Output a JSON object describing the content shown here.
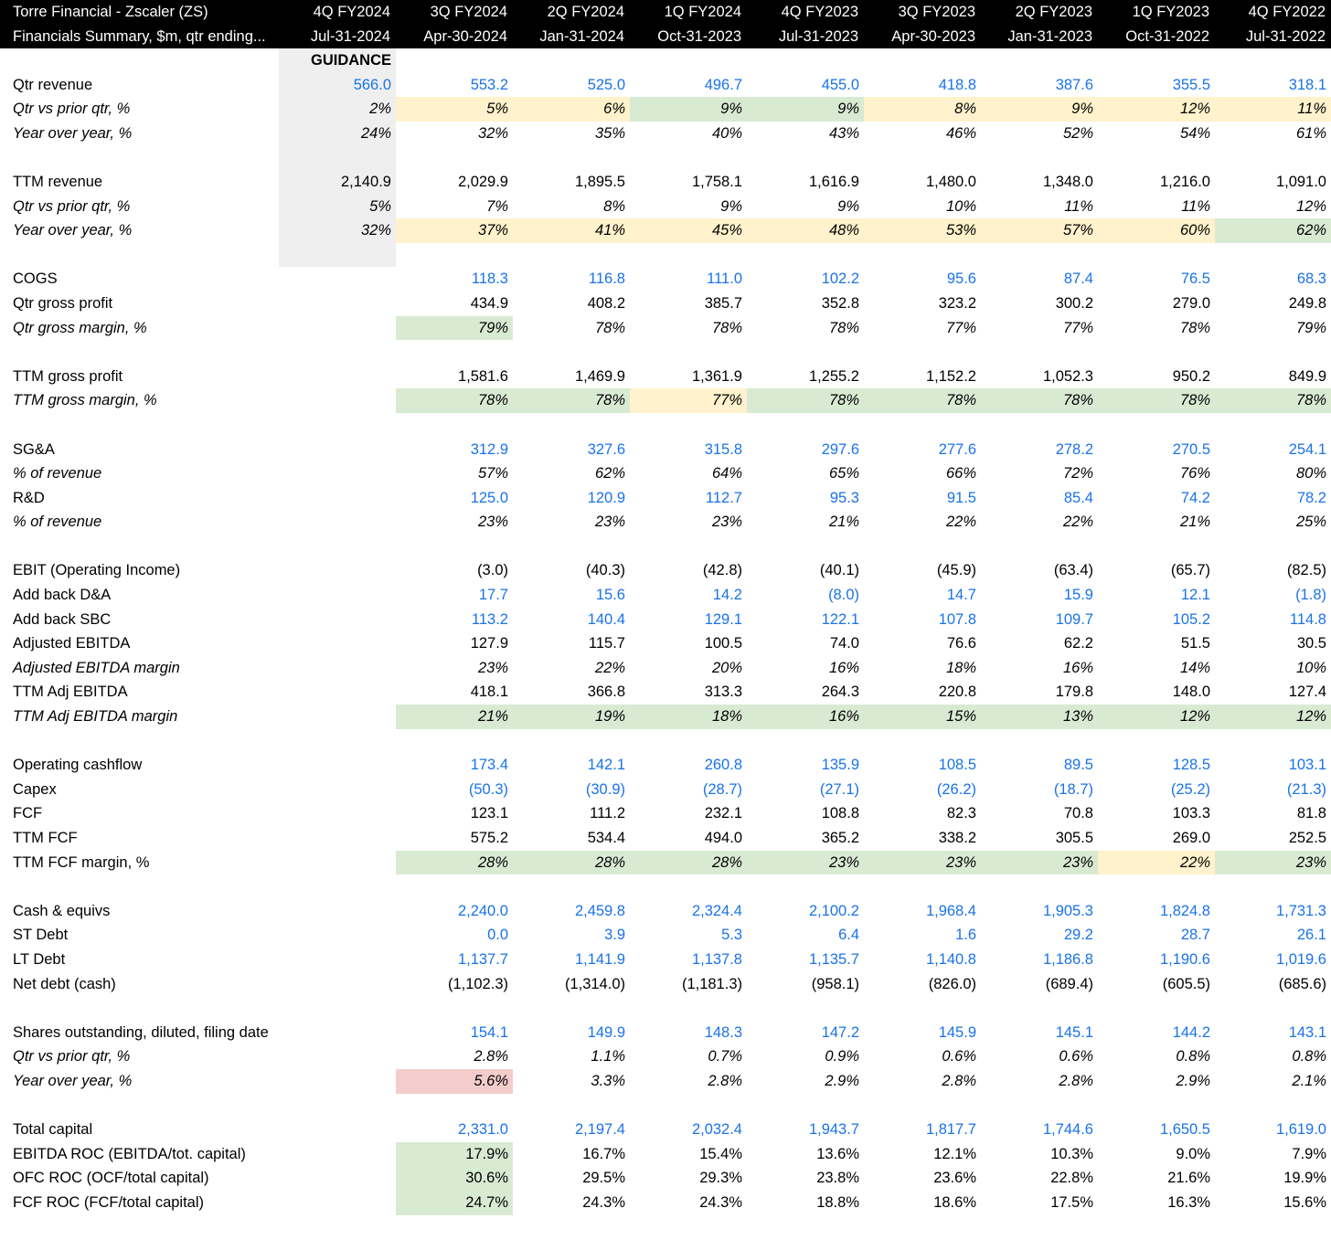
{
  "header": {
    "line1": [
      "Torre Financial - Zscaler (ZS)",
      "4Q FY2024",
      "3Q FY2024",
      "2Q FY2024",
      "1Q FY2024",
      "4Q FY2023",
      "3Q FY2023",
      "2Q FY2023",
      "1Q FY2023",
      "4Q FY2022"
    ],
    "line2": [
      "Financials Summary, $m, qtr ending...",
      "Jul-31-2024",
      "Apr-30-2024",
      "Jan-31-2024",
      "Oct-31-2023",
      "Jul-31-2023",
      "Apr-30-2023",
      "Jan-31-2023",
      "Oct-31-2022",
      "Jul-31-2022"
    ]
  },
  "guidance_label": "GUIDANCE",
  "colors": {
    "blue_input": "#1a73e8",
    "green": "#d9ead3",
    "yellow": "#fff2cc",
    "red": "#f4cccc",
    "guidance": "#efefef"
  },
  "rows": [
    {
      "label": "Qtr revenue",
      "blue": true,
      "values": [
        "566.0",
        "553.2",
        "525.0",
        "496.7",
        "455.0",
        "418.8",
        "387.6",
        "355.5",
        "318.1"
      ]
    },
    {
      "label": "Qtr vs prior qtr, %",
      "italic": true,
      "values": [
        "2%",
        "5%",
        "6%",
        "9%",
        "9%",
        "8%",
        "9%",
        "12%",
        "11%"
      ],
      "fills": [
        "",
        "y",
        "y",
        "g",
        "g",
        "y",
        "y",
        "y",
        "y"
      ]
    },
    {
      "label": "Year over year, %",
      "italic": true,
      "values": [
        "24%",
        "32%",
        "35%",
        "40%",
        "43%",
        "46%",
        "52%",
        "54%",
        "61%"
      ]
    },
    {
      "blank": true
    },
    {
      "label": "TTM revenue",
      "values": [
        "2,140.9",
        "2,029.9",
        "1,895.5",
        "1,758.1",
        "1,616.9",
        "1,480.0",
        "1,348.0",
        "1,216.0",
        "1,091.0"
      ]
    },
    {
      "label": "Qtr vs prior qtr, %",
      "italic": true,
      "values": [
        "5%",
        "7%",
        "8%",
        "9%",
        "9%",
        "10%",
        "11%",
        "11%",
        "12%"
      ]
    },
    {
      "label": "Year over year, %",
      "italic": true,
      "values": [
        "32%",
        "37%",
        "41%",
        "45%",
        "48%",
        "53%",
        "57%",
        "60%",
        "62%"
      ],
      "fills": [
        "",
        "y",
        "y",
        "y",
        "y",
        "y",
        "y",
        "y",
        "g"
      ]
    },
    {
      "blank": true
    },
    {
      "label": "COGS",
      "blue": true,
      "values": [
        "",
        "118.3",
        "116.8",
        "111.0",
        "102.2",
        "95.6",
        "87.4",
        "76.5",
        "68.3"
      ]
    },
    {
      "label": "Qtr gross profit",
      "values": [
        "",
        "434.9",
        "408.2",
        "385.7",
        "352.8",
        "323.2",
        "300.2",
        "279.0",
        "249.8"
      ]
    },
    {
      "label": "Qtr gross margin, %",
      "italic": true,
      "values": [
        "",
        "79%",
        "78%",
        "78%",
        "78%",
        "77%",
        "77%",
        "78%",
        "79%"
      ],
      "fills": [
        "",
        "g",
        "",
        "",
        "",
        "",
        "",
        "",
        ""
      ]
    },
    {
      "blank": true
    },
    {
      "label": "TTM gross profit",
      "values": [
        "",
        "1,581.6",
        "1,469.9",
        "1,361.9",
        "1,255.2",
        "1,152.2",
        "1,052.3",
        "950.2",
        "849.9"
      ]
    },
    {
      "label": "TTM gross margin, %",
      "italic": true,
      "values": [
        "",
        "78%",
        "78%",
        "77%",
        "78%",
        "78%",
        "78%",
        "78%",
        "78%"
      ],
      "fills": [
        "",
        "g",
        "g",
        "y",
        "g",
        "g",
        "g",
        "g",
        "g"
      ]
    },
    {
      "blank": true
    },
    {
      "label": "SG&A",
      "blue": true,
      "values": [
        "",
        "312.9",
        "327.6",
        "315.8",
        "297.6",
        "277.6",
        "278.2",
        "270.5",
        "254.1"
      ]
    },
    {
      "label": "% of revenue",
      "italic": true,
      "values": [
        "",
        "57%",
        "62%",
        "64%",
        "65%",
        "66%",
        "72%",
        "76%",
        "80%"
      ]
    },
    {
      "label": "R&D",
      "blue": true,
      "values": [
        "",
        "125.0",
        "120.9",
        "112.7",
        "95.3",
        "91.5",
        "85.4",
        "74.2",
        "78.2"
      ]
    },
    {
      "label": "% of revenue",
      "italic": true,
      "values": [
        "",
        "23%",
        "23%",
        "23%",
        "21%",
        "22%",
        "22%",
        "21%",
        "25%"
      ]
    },
    {
      "blank": true
    },
    {
      "label": "EBIT (Operating Income)",
      "values": [
        "",
        "(3.0)",
        "(40.3)",
        "(42.8)",
        "(40.1)",
        "(45.9)",
        "(63.4)",
        "(65.7)",
        "(82.5)"
      ]
    },
    {
      "label": "Add back D&A",
      "blue": true,
      "values": [
        "",
        "17.7",
        "15.6",
        "14.2",
        "(8.0)",
        "14.7",
        "15.9",
        "12.1",
        "(1.8)"
      ]
    },
    {
      "label": "Add back SBC",
      "blue": true,
      "values": [
        "",
        "113.2",
        "140.4",
        "129.1",
        "122.1",
        "107.8",
        "109.7",
        "105.2",
        "114.8"
      ]
    },
    {
      "label": "Adjusted EBITDA",
      "values": [
        "",
        "127.9",
        "115.7",
        "100.5",
        "74.0",
        "76.6",
        "62.2",
        "51.5",
        "30.5"
      ]
    },
    {
      "label": "Adjusted EBITDA margin",
      "italic": true,
      "values": [
        "",
        "23%",
        "22%",
        "20%",
        "16%",
        "18%",
        "16%",
        "14%",
        "10%"
      ]
    },
    {
      "label": "TTM Adj EBITDA",
      "values": [
        "",
        "418.1",
        "366.8",
        "313.3",
        "264.3",
        "220.8",
        "179.8",
        "148.0",
        "127.4"
      ]
    },
    {
      "label": "TTM Adj EBITDA margin",
      "italic": true,
      "values": [
        "",
        "21%",
        "19%",
        "18%",
        "16%",
        "15%",
        "13%",
        "12%",
        "12%"
      ],
      "fills": [
        "",
        "g",
        "g",
        "g",
        "g",
        "g",
        "g",
        "g",
        "g"
      ]
    },
    {
      "blank": true
    },
    {
      "label": "Operating cashflow",
      "blue": true,
      "values": [
        "",
        "173.4",
        "142.1",
        "260.8",
        "135.9",
        "108.5",
        "89.5",
        "128.5",
        "103.1"
      ]
    },
    {
      "label": "Capex",
      "blue": true,
      "values": [
        "",
        "(50.3)",
        "(30.9)",
        "(28.7)",
        "(27.1)",
        "(26.2)",
        "(18.7)",
        "(25.2)",
        "(21.3)"
      ]
    },
    {
      "label": "FCF",
      "values": [
        "",
        "123.1",
        "111.2",
        "232.1",
        "108.8",
        "82.3",
        "70.8",
        "103.3",
        "81.8"
      ]
    },
    {
      "label": "TTM FCF",
      "values": [
        "",
        "575.2",
        "534.4",
        "494.0",
        "365.2",
        "338.2",
        "305.5",
        "269.0",
        "252.5"
      ]
    },
    {
      "label": "TTM FCF margin, %",
      "italicValues": true,
      "values": [
        "",
        "28%",
        "28%",
        "28%",
        "23%",
        "23%",
        "23%",
        "22%",
        "23%"
      ],
      "fills": [
        "",
        "g",
        "g",
        "g",
        "g",
        "g",
        "g",
        "y",
        "g"
      ]
    },
    {
      "blank": true
    },
    {
      "label": "Cash & equivs",
      "blue": true,
      "values": [
        "",
        "2,240.0",
        "2,459.8",
        "2,324.4",
        "2,100.2",
        "1,968.4",
        "1,905.3",
        "1,824.8",
        "1,731.3"
      ]
    },
    {
      "label": "ST Debt",
      "blue": true,
      "values": [
        "",
        "0.0",
        "3.9",
        "5.3",
        "6.4",
        "1.6",
        "29.2",
        "28.7",
        "26.1"
      ]
    },
    {
      "label": "LT Debt",
      "blue": true,
      "values": [
        "",
        "1,137.7",
        "1,141.9",
        "1,137.8",
        "1,135.7",
        "1,140.8",
        "1,186.8",
        "1,190.6",
        "1,019.6"
      ]
    },
    {
      "label": "Net debt (cash)",
      "values": [
        "",
        "(1,102.3)",
        "(1,314.0)",
        "(1,181.3)",
        "(958.1)",
        "(826.0)",
        "(689.4)",
        "(605.5)",
        "(685.6)"
      ]
    },
    {
      "blank": true
    },
    {
      "label": "Shares outstanding, diluted, filing date",
      "blue": true,
      "values": [
        "",
        "154.1",
        "149.9",
        "148.3",
        "147.2",
        "145.9",
        "145.1",
        "144.2",
        "143.1"
      ]
    },
    {
      "label": "Qtr vs prior qtr, %",
      "italic": true,
      "values": [
        "",
        "2.8%",
        "1.1%",
        "0.7%",
        "0.9%",
        "0.6%",
        "0.6%",
        "0.8%",
        "0.8%"
      ]
    },
    {
      "label": "Year over year, %",
      "italic": true,
      "values": [
        "",
        "5.6%",
        "3.3%",
        "2.8%",
        "2.9%",
        "2.8%",
        "2.8%",
        "2.9%",
        "2.1%"
      ],
      "fills": [
        "",
        "r",
        "",
        "",
        "",
        "",
        "",
        "",
        ""
      ]
    },
    {
      "blank": true
    },
    {
      "label": "Total capital",
      "blue": true,
      "values": [
        "",
        "2,331.0",
        "2,197.4",
        "2,032.4",
        "1,943.7",
        "1,817.7",
        "1,744.6",
        "1,650.5",
        "1,619.0"
      ]
    },
    {
      "label": "EBITDA ROC (EBITDA/tot. capital)",
      "values": [
        "",
        "17.9%",
        "16.7%",
        "15.4%",
        "13.6%",
        "12.1%",
        "10.3%",
        "9.0%",
        "7.9%"
      ],
      "fills": [
        "",
        "g",
        "",
        "",
        "",
        "",
        "",
        "",
        ""
      ]
    },
    {
      "label": "OFC ROC (OCF/total capital)",
      "values": [
        "",
        "30.6%",
        "29.5%",
        "29.3%",
        "23.8%",
        "23.6%",
        "22.8%",
        "21.6%",
        "19.9%"
      ],
      "fills": [
        "",
        "g",
        "",
        "",
        "",
        "",
        "",
        "",
        ""
      ]
    },
    {
      "label": "FCF ROC (FCF/total capital)",
      "values": [
        "",
        "24.7%",
        "24.3%",
        "24.3%",
        "18.8%",
        "18.6%",
        "17.5%",
        "16.3%",
        "15.6%"
      ],
      "fills": [
        "",
        "g",
        "",
        "",
        "",
        "",
        "",
        "",
        ""
      ]
    }
  ]
}
